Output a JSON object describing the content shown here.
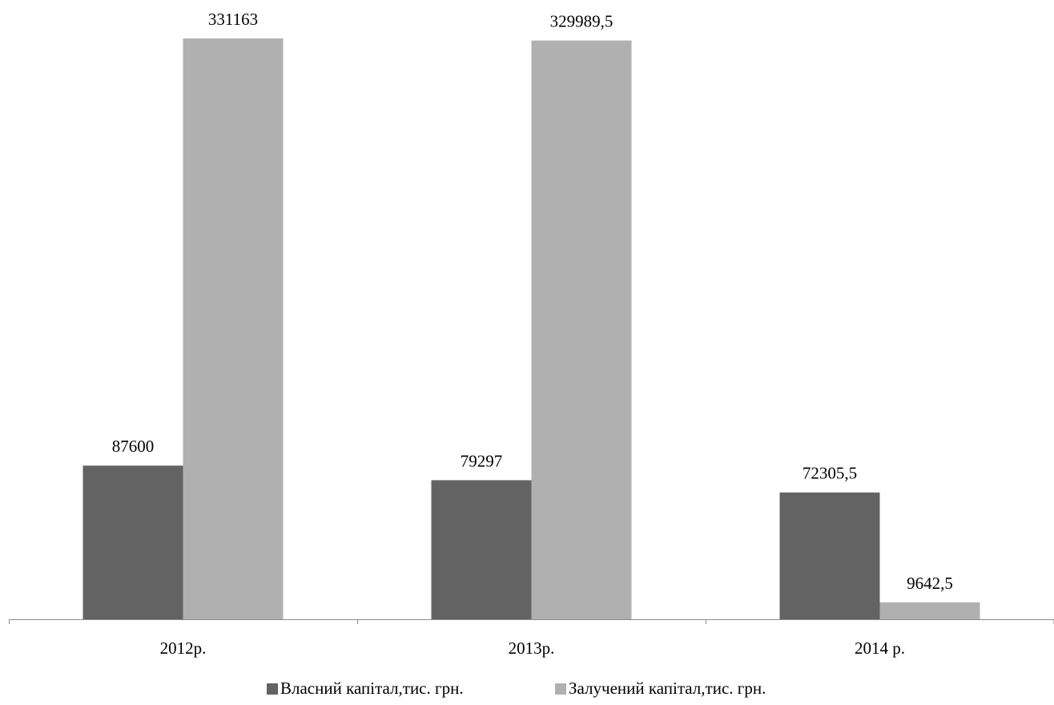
{
  "chart_data": {
    "type": "bar",
    "categories": [
      "2012р.",
      "2013р.",
      "2014 р."
    ],
    "series": [
      {
        "name": "Власний капітал,тис. грн.",
        "values": [
          87600,
          79297,
          72305.5
        ],
        "labels": [
          "87600",
          "79297",
          "72305,5"
        ],
        "color": "#636363"
      },
      {
        "name": "Залучений капітал,тис. грн.",
        "values": [
          331163,
          329989.5,
          9642.5
        ],
        "labels": [
          "331163",
          "329989,5",
          "9642,5"
        ],
        "color": "#b0b0b0"
      }
    ],
    "ylim": [
      0,
      331163
    ],
    "grid": false,
    "legend_position": "bottom",
    "axis_color": "#8c8c8c"
  }
}
